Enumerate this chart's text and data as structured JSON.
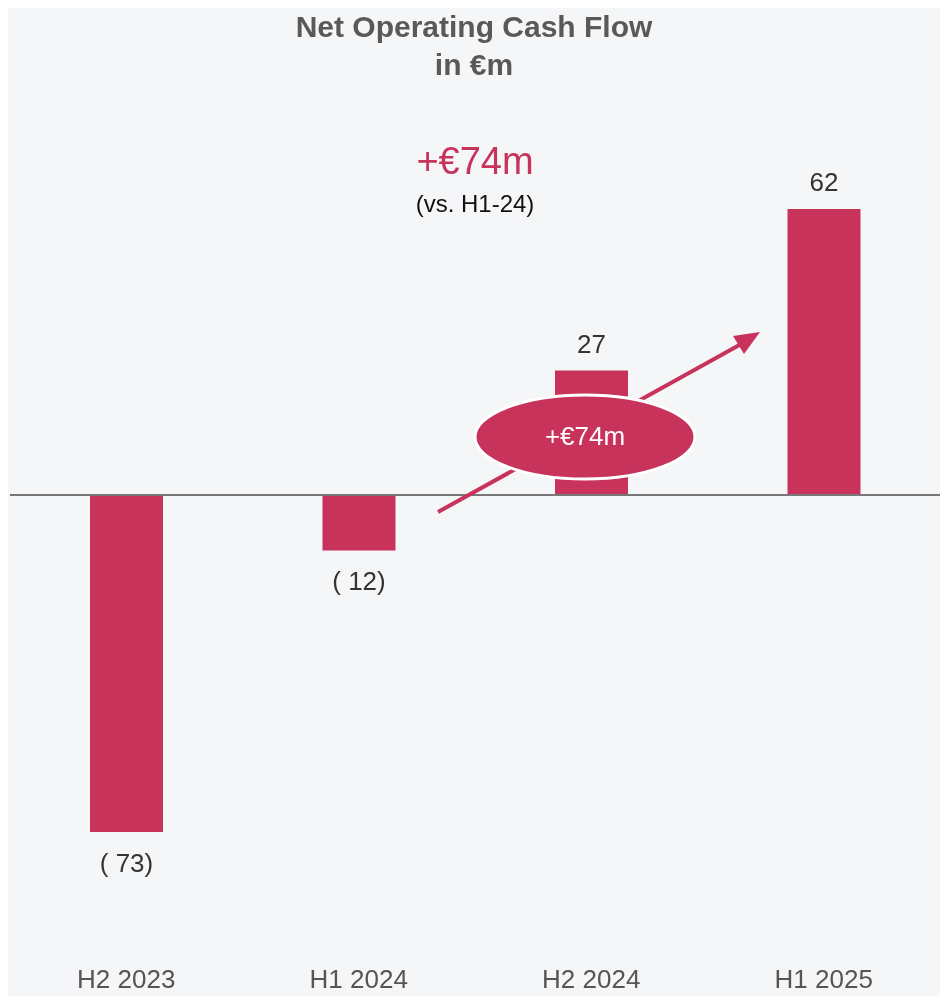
{
  "chart_data": {
    "type": "bar",
    "title": "Net Operating Cash Flow\nin €m",
    "categories": [
      "H2 2023",
      "H1 2024",
      "H2 2024",
      "H1 2025"
    ],
    "values": [
      -73,
      -12,
      27,
      62
    ],
    "value_labels": [
      "( 73)",
      "( 12)",
      "27",
      "62"
    ],
    "color": "#c8335c",
    "annotations": [
      "+€74m",
      "(vs. H1-24)",
      "+€74m"
    ]
  }
}
